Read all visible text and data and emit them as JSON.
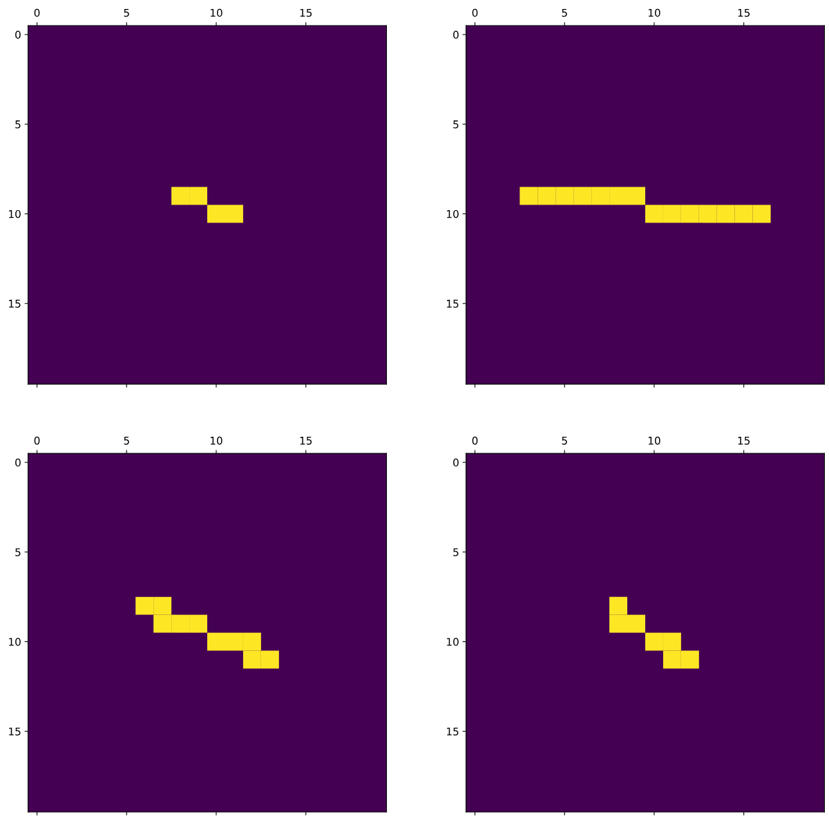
{
  "chart_data": [
    {
      "type": "scatter",
      "marker": "square",
      "xlim": [
        -0.5,
        19.5
      ],
      "ylim": [
        19.5,
        -0.5
      ],
      "xticks": [
        0,
        5,
        10,
        15
      ],
      "yticks": [
        0,
        5,
        10,
        15
      ],
      "series": [
        {
          "color": "#fde725",
          "x": [
            8,
            9,
            10,
            11
          ],
          "values": [
            9,
            9,
            10,
            10
          ]
        }
      ]
    },
    {
      "type": "scatter",
      "marker": "square",
      "xlim": [
        -0.5,
        19.5
      ],
      "ylim": [
        19.5,
        -0.5
      ],
      "xticks": [
        0,
        5,
        10,
        15
      ],
      "yticks": [
        0,
        5,
        10,
        15
      ],
      "series": [
        {
          "color": "#fde725",
          "x": [
            3,
            4,
            5,
            6,
            7,
            8,
            9,
            10,
            11,
            12,
            13,
            14,
            15,
            16
          ],
          "values": [
            9,
            9,
            9,
            9,
            9,
            9,
            9,
            10,
            10,
            10,
            10,
            10,
            10,
            10
          ]
        }
      ]
    },
    {
      "type": "scatter",
      "marker": "square",
      "xlim": [
        -0.5,
        19.5
      ],
      "ylim": [
        19.5,
        -0.5
      ],
      "xticks": [
        0,
        5,
        10,
        15
      ],
      "yticks": [
        0,
        5,
        10,
        15
      ],
      "series": [
        {
          "color": "#fde725",
          "x": [
            6,
            7,
            7,
            8,
            9,
            10,
            11,
            12,
            12,
            13
          ],
          "values": [
            8,
            8,
            9,
            9,
            9,
            10,
            10,
            10,
            11,
            11
          ]
        }
      ]
    },
    {
      "type": "scatter",
      "marker": "square",
      "xlim": [
        -0.5,
        19.5
      ],
      "ylim": [
        19.5,
        -0.5
      ],
      "xticks": [
        0,
        5,
        10,
        15
      ],
      "yticks": [
        0,
        5,
        10,
        15
      ],
      "series": [
        {
          "color": "#fde725",
          "x": [
            8,
            8,
            9,
            10,
            11,
            11,
            12
          ],
          "values": [
            8,
            9,
            9,
            10,
            10,
            11,
            11
          ]
        }
      ]
    }
  ]
}
